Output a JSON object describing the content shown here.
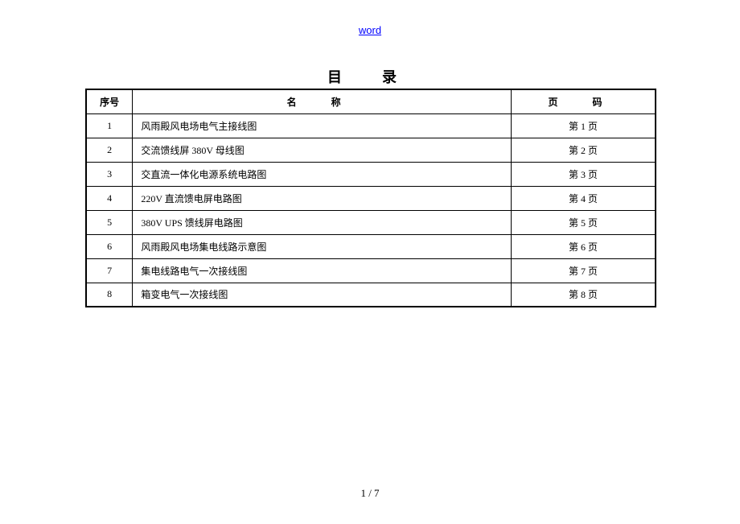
{
  "header": {
    "link_text": "word"
  },
  "title": {
    "char1": "目",
    "char2": "录"
  },
  "table": {
    "headers": {
      "seq": "序号",
      "name": "名    称",
      "page": "页    码"
    },
    "rows": [
      {
        "seq": "1",
        "name": "风雨殿风电场电气主接线图",
        "page": "第 1 页"
      },
      {
        "seq": "2",
        "name": "交流馈线屏 380V 母线图",
        "page": "第 2 页"
      },
      {
        "seq": "3",
        "name": "交直流一体化电源系统电路图",
        "page": "第 3 页"
      },
      {
        "seq": "4",
        "name": "220V 直流馈电屏电路图",
        "page": "第 4 页"
      },
      {
        "seq": "5",
        "name": "380V UPS 馈线屏电路图",
        "page": "第 5 页"
      },
      {
        "seq": "6",
        "name": "风雨殿风电场集电线路示意图",
        "page": "第 6 页"
      },
      {
        "seq": "7",
        "name": "集电线路电气一次接线图",
        "page": "第 7 页"
      },
      {
        "seq": "8",
        "name": "箱变电气一次接线图",
        "page": "第 8 页"
      }
    ]
  },
  "footer": {
    "page_number": "1 / 7"
  }
}
